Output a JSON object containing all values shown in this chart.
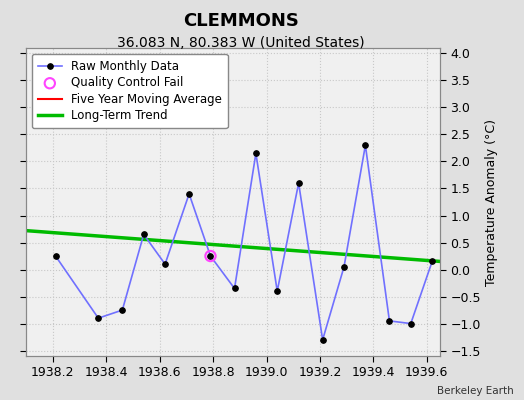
{
  "title": "CLEMMONS",
  "subtitle": "36.083 N, 80.383 W (United States)",
  "credit": "Berkeley Earth",
  "ylabel_right": "Temperature Anomaly (°C)",
  "xlim": [
    1938.1,
    1939.65
  ],
  "ylim": [
    -1.6,
    4.1
  ],
  "xticks": [
    1938.2,
    1938.4,
    1938.6,
    1938.8,
    1939.0,
    1939.2,
    1939.4,
    1939.6
  ],
  "yticks": [
    -1.5,
    -1.0,
    -0.5,
    0.0,
    0.5,
    1.0,
    1.5,
    2.0,
    2.5,
    3.0,
    3.5,
    4.0
  ],
  "raw_x": [
    1938.21,
    1938.37,
    1938.46,
    1938.54,
    1938.62,
    1938.71,
    1938.79,
    1938.88,
    1938.96,
    1939.04,
    1939.12,
    1939.21,
    1939.29,
    1939.37,
    1939.46,
    1939.54,
    1939.62
  ],
  "raw_y": [
    0.25,
    -0.9,
    -0.75,
    0.65,
    0.1,
    1.4,
    0.25,
    -0.35,
    2.15,
    -0.4,
    1.6,
    -1.3,
    0.05,
    2.3,
    -0.95,
    -1.0,
    0.15
  ],
  "qc_fail_x": [
    1938.79
  ],
  "qc_fail_y": [
    0.25
  ],
  "trend_x": [
    1938.1,
    1939.65
  ],
  "trend_y": [
    0.72,
    0.15
  ],
  "raw_line_color": "#7070ff",
  "raw_marker_face": "#000000",
  "raw_marker_edge": "#000000",
  "qc_color": "#ff44ff",
  "trend_color": "#00bb00",
  "moving_avg_color": "#ff0000",
  "figure_bg_color": "#e0e0e0",
  "plot_bg_color": "#f0f0f0",
  "grid_color": "#c8c8c8",
  "title_fontsize": 13,
  "subtitle_fontsize": 10,
  "label_fontsize": 9,
  "tick_fontsize": 9
}
